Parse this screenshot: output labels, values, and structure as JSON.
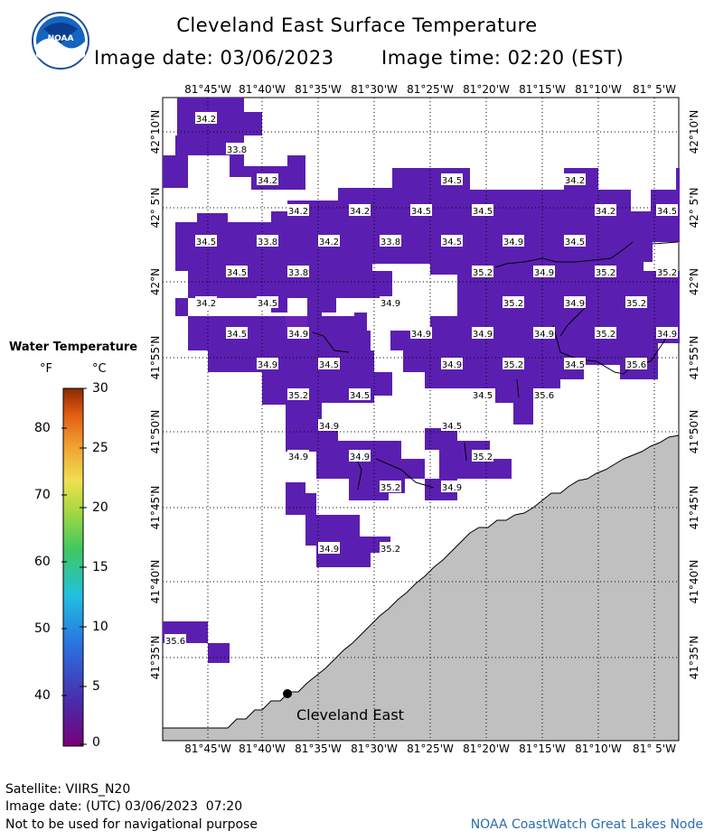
{
  "header": {
    "title": "Cleveland East Surface Temperature",
    "image_date": "Image date: 03/06/2023",
    "image_time": "Image time: 02:20 (EST)"
  },
  "logo": {
    "text": "NOAA",
    "icon": "noaa-logo-icon"
  },
  "map": {
    "lon_labels": [
      "81°45'W",
      "81°40'W",
      "81°35'W",
      "81°30'W",
      "81°25'W",
      "81°20'W",
      "81°15'W",
      "81°10'W",
      "81° 5'W"
    ],
    "lat_labels": [
      "42°10'N",
      "42° 5'N",
      "42°N",
      "41°55'N",
      "41°50'N",
      "41°45'N",
      "41°40'N",
      "41°35'N"
    ],
    "station_label": "Cleveland East",
    "temperature_labels": [
      {
        "v": "34.2",
        "lat": "42°10'N",
        "lon": "81°45'W"
      },
      {
        "v": "33.8"
      },
      {
        "v": "34.2"
      },
      {
        "v": "34.5"
      },
      {
        "v": "34.2"
      },
      {
        "v": "34.2"
      },
      {
        "v": "34.2"
      },
      {
        "v": "34.5"
      },
      {
        "v": "34.5"
      },
      {
        "v": "34.2"
      },
      {
        "v": "34.5"
      },
      {
        "v": "34.5"
      },
      {
        "v": "33.8"
      },
      {
        "v": "34.2"
      },
      {
        "v": "33.8"
      },
      {
        "v": "34.5"
      },
      {
        "v": "34.9"
      },
      {
        "v": "34.5"
      },
      {
        "v": "34.5"
      },
      {
        "v": "33.8"
      },
      {
        "v": "35.2"
      },
      {
        "v": "34.9"
      },
      {
        "v": "35.2"
      },
      {
        "v": "35.2"
      },
      {
        "v": "34.2"
      },
      {
        "v": "34.5"
      },
      {
        "v": "34.9"
      },
      {
        "v": "35.2"
      },
      {
        "v": "34.9"
      },
      {
        "v": "35.2"
      },
      {
        "v": "34.5"
      },
      {
        "v": "34.9"
      },
      {
        "v": "34.9"
      },
      {
        "v": "34.9"
      },
      {
        "v": "34.9"
      },
      {
        "v": "35.2"
      },
      {
        "v": "34.9"
      },
      {
        "v": "34.9"
      },
      {
        "v": "34.5"
      },
      {
        "v": "34.9"
      },
      {
        "v": "35.2"
      },
      {
        "v": "34.5"
      },
      {
        "v": "35.6"
      },
      {
        "v": "35.2"
      },
      {
        "v": "34.5"
      },
      {
        "v": "34.5"
      },
      {
        "v": "35.6"
      },
      {
        "v": "34.9"
      },
      {
        "v": "34.5"
      },
      {
        "v": "34.9"
      },
      {
        "v": "34.9"
      },
      {
        "v": "35.2"
      },
      {
        "v": "35.2"
      },
      {
        "v": "34.9"
      },
      {
        "v": "34.9"
      },
      {
        "v": "35.2"
      },
      {
        "v": "35.6"
      }
    ]
  },
  "legend": {
    "title": "Water Temperature",
    "unit_f": "°F",
    "unit_c": "°C",
    "f_ticks": [
      "80",
      "70",
      "60",
      "50",
      "40"
    ],
    "c_ticks": [
      "30",
      "25",
      "20",
      "15",
      "10",
      "5",
      "0"
    ]
  },
  "footer": {
    "satellite": "Satellite: VIIRS_N20",
    "utc_date": "Image date: (UTC) 03/06/2023  07:20",
    "disclaimer": "Not to be used for navigational purpose",
    "credit": "NOAA CoastWatch Great Lakes Node"
  },
  "colors": {
    "water_fill": "#5a1fb0",
    "water_fill_alt": "#6a22b8",
    "land": "#c0c0c0",
    "grid": "#000000",
    "credit_text": "#2b6cb0"
  }
}
